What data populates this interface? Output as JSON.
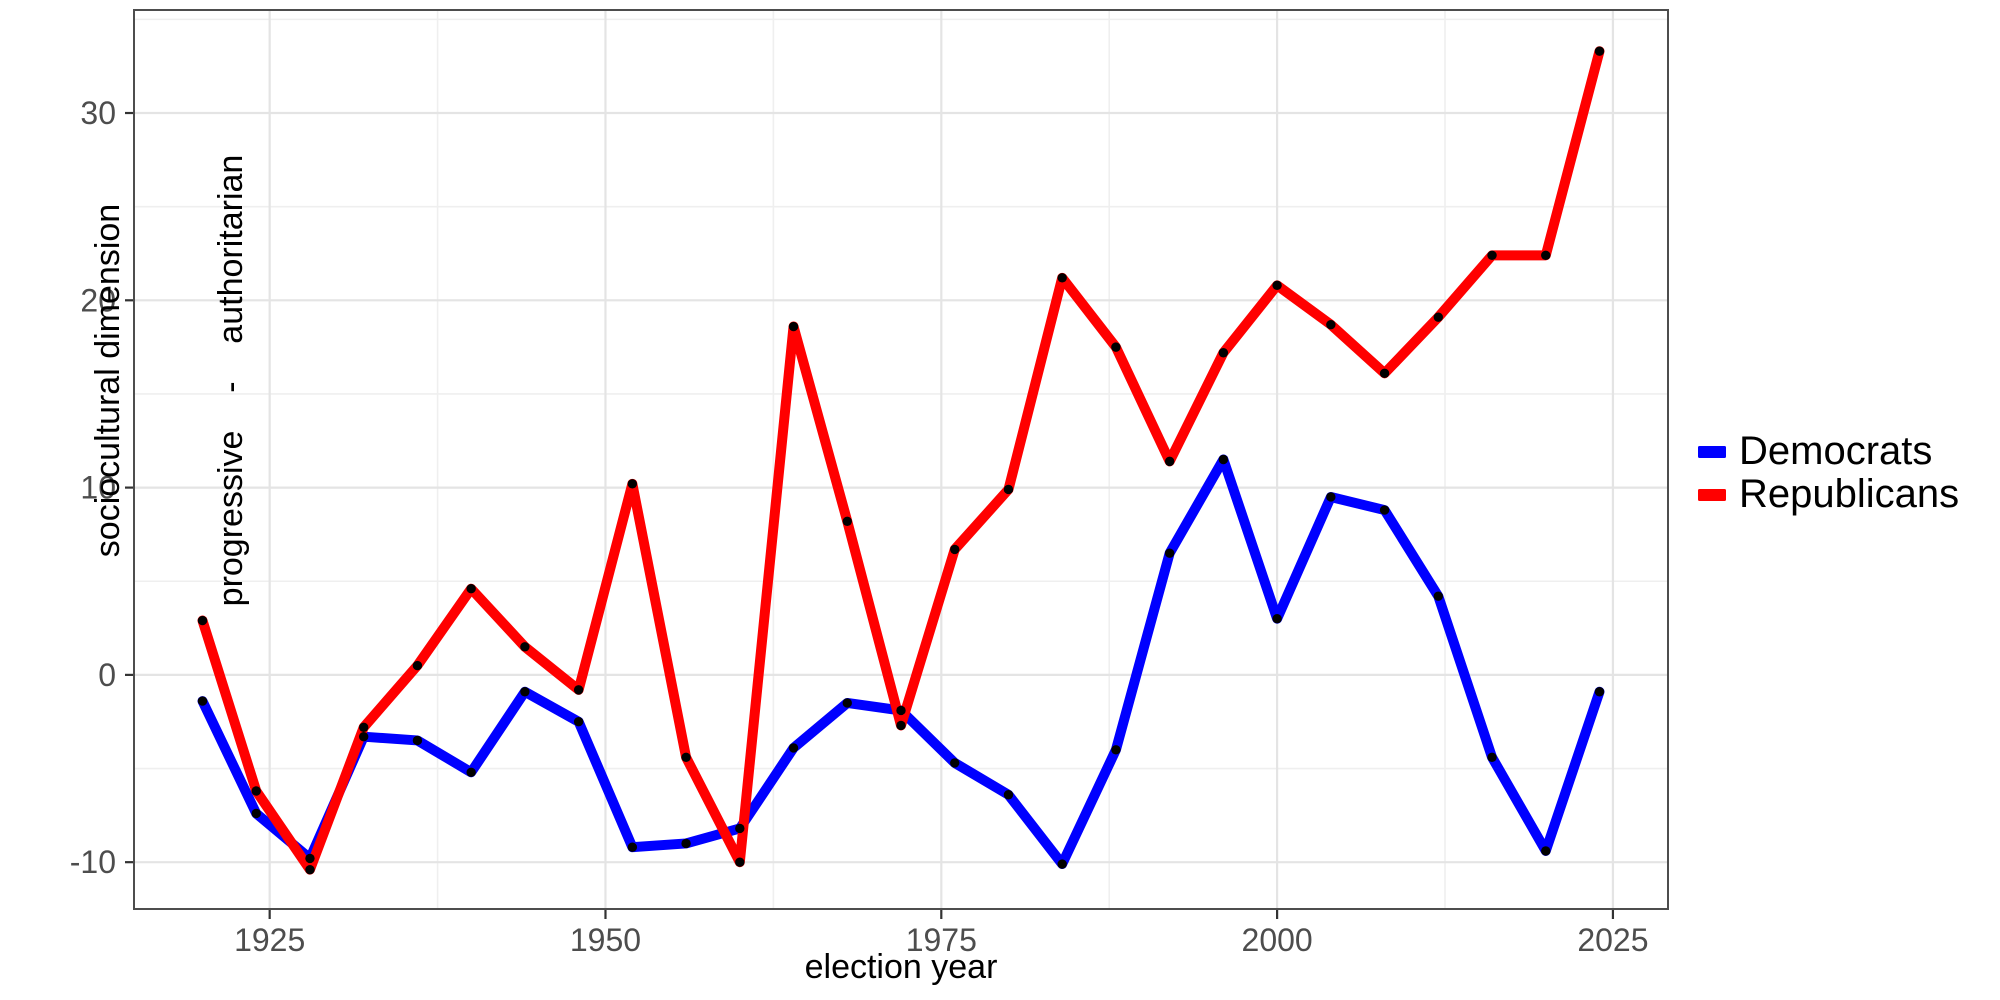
{
  "chart_data": {
    "type": "line",
    "title": "",
    "xlabel": "election year",
    "ylabel_line1": "sociocultural dimension",
    "ylabel_line2": "progressive    -    authoritarian",
    "x": [
      1920,
      1924,
      1928,
      1932,
      1936,
      1940,
      1944,
      1948,
      1952,
      1956,
      1960,
      1964,
      1968,
      1972,
      1976,
      1980,
      1984,
      1988,
      1992,
      1996,
      2000,
      2004,
      2008,
      2012,
      2016,
      2020,
      2024
    ],
    "series": [
      {
        "name": "Democrats",
        "color": "#0000FF",
        "values": [
          -1.4,
          -7.4,
          -9.8,
          -3.3,
          -3.5,
          -5.2,
          -0.9,
          -2.5,
          -9.2,
          -9.0,
          -8.2,
          -3.9,
          -1.5,
          -1.9,
          -4.7,
          -6.4,
          -10.1,
          -4.0,
          6.5,
          11.5,
          3.0,
          9.5,
          8.8,
          4.2,
          -4.4,
          -9.4,
          -0.9
        ]
      },
      {
        "name": "Republicans",
        "color": "#FF0000",
        "values": [
          2.9,
          -6.2,
          -10.4,
          -2.8,
          0.5,
          4.6,
          1.5,
          -0.8,
          10.2,
          -4.4,
          -10.0,
          18.6,
          8.2,
          -2.7,
          6.7,
          9.9,
          21.2,
          17.5,
          11.4,
          17.2,
          20.8,
          18.7,
          16.1,
          19.1,
          22.4,
          22.4,
          33.3
        ]
      }
    ],
    "x_ticks": [
      1925,
      1950,
      1975,
      2000,
      2025
    ],
    "y_ticks": [
      -10,
      0,
      10,
      20,
      30
    ],
    "x_minor_ticks": [
      1937.5,
      1962.5,
      1987.5,
      2012.5
    ],
    "y_minor_ticks": [
      -5,
      5,
      15,
      25,
      35
    ],
    "xlim": [
      1914.9,
      2029.1
    ],
    "ylim": [
      -12.5,
      35.5
    ],
    "grid": true,
    "legend_position": "right",
    "point_color": "#000000"
  }
}
